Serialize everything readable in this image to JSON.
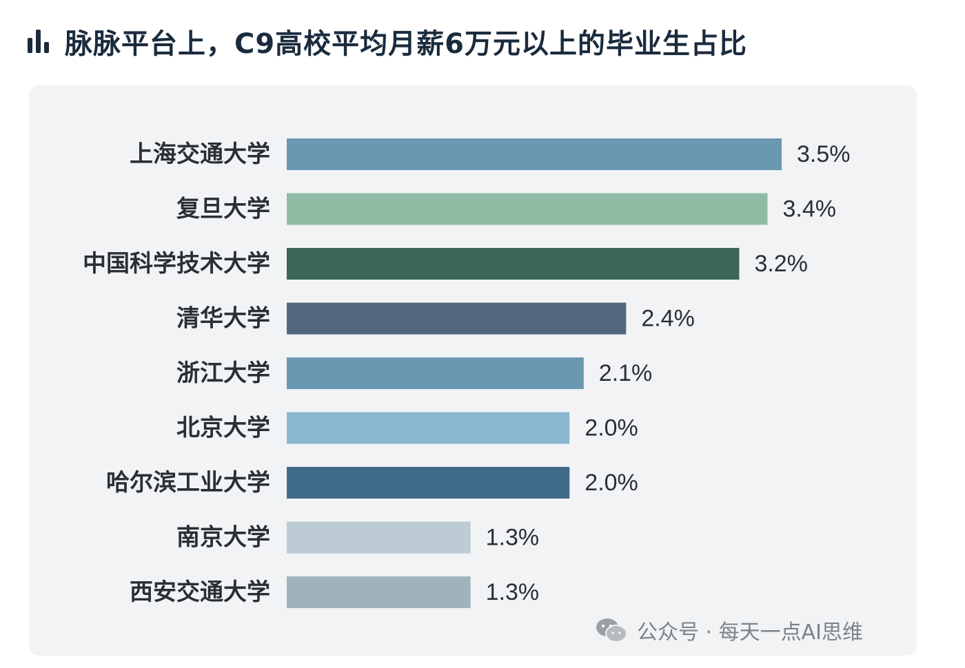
{
  "header": {
    "title": "脉脉平台上，C9高校平均月薪6万元以上的毕业生占比",
    "icon": "bar-chart-icon"
  },
  "watermark": {
    "icon": "wechat-icon",
    "text": "公众号 · 每天一点AI思维"
  },
  "chart_data": {
    "type": "bar",
    "orientation": "horizontal",
    "title": "",
    "xlabel": "",
    "ylabel": "",
    "grid": false,
    "legend": false,
    "xlim": [
      0,
      3.5
    ],
    "unit": "%",
    "categories": [
      "上海交通大学",
      "复旦大学",
      "中国科学技术大学",
      "清华大学",
      "浙江大学",
      "北京大学",
      "哈尔滨工业大学",
      "南京大学",
      "西安交通大学"
    ],
    "values": [
      3.5,
      3.4,
      3.2,
      2.4,
      2.1,
      2.0,
      2.0,
      1.3,
      1.3
    ],
    "labels": [
      "3.5%",
      "3.4%",
      "3.2%",
      "2.4%",
      "2.1%",
      "2.0%",
      "2.0%",
      "1.3%",
      "1.3%"
    ],
    "colors": [
      "#6a97b1",
      "#8fbba5",
      "#3b665a",
      "#52667c",
      "#6a97b1",
      "#8ab8d2",
      "#3f6b88",
      "#bdccd4",
      "#9fb3bb"
    ]
  }
}
